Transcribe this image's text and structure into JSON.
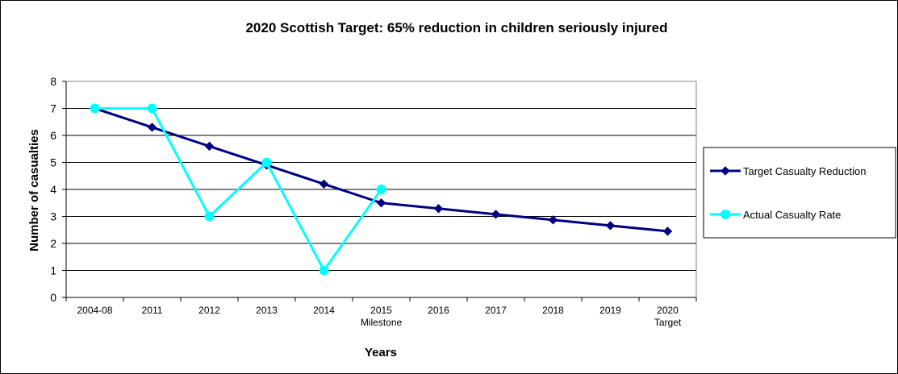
{
  "chart_data": {
    "type": "line",
    "title": "2020 Scottish Target: 65% reduction in children seriously injured",
    "xlabel": "Years",
    "ylabel": "Number of casualties",
    "categories": [
      [
        "2004-08"
      ],
      [
        "2011"
      ],
      [
        "2012"
      ],
      [
        "2013"
      ],
      [
        "2014"
      ],
      [
        "2015",
        "Milestone"
      ],
      [
        "2016"
      ],
      [
        "2017"
      ],
      [
        "2018"
      ],
      [
        "2019"
      ],
      [
        "2020",
        "Target"
      ]
    ],
    "ylim": [
      0,
      8
    ],
    "yticks": [
      0,
      1,
      2,
      3,
      4,
      5,
      6,
      7,
      8
    ],
    "grid": true,
    "legend_position": "right",
    "series": [
      {
        "name": "Target Casualty Reduction",
        "color": "#000080",
        "marker": "diamond",
        "values": [
          7.0,
          6.3,
          5.6,
          4.9,
          4.2,
          3.5,
          3.29,
          3.08,
          2.87,
          2.66,
          2.45
        ]
      },
      {
        "name": "Actual Casualty Rate",
        "color": "#00FFFF",
        "marker": "circle",
        "values": [
          7,
          7,
          3,
          5,
          1,
          4,
          null,
          null,
          null,
          null,
          null
        ]
      }
    ]
  }
}
